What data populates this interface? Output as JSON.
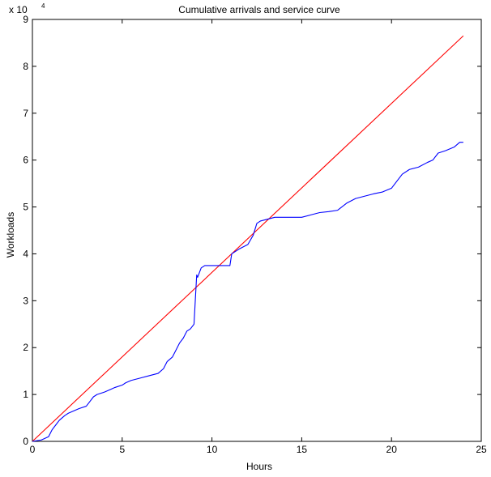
{
  "chart_data": {
    "type": "line",
    "title": "Cumulative arrivals and service curve",
    "xlabel": "Hours",
    "ylabel": "Workloads",
    "y_exponent_label": "x 10",
    "y_exponent_power": "4",
    "xlim": [
      0,
      25
    ],
    "ylim": [
      0,
      90000
    ],
    "x_ticks": [
      0,
      5,
      10,
      15,
      20,
      25
    ],
    "y_ticks": [
      0,
      10000,
      20000,
      30000,
      40000,
      50000,
      60000,
      70000,
      80000,
      90000
    ],
    "y_tick_labels": [
      "0",
      "1",
      "2",
      "3",
      "4",
      "5",
      "6",
      "7",
      "8",
      "9"
    ],
    "x_tick_labels": [
      "0",
      "5",
      "10",
      "15",
      "20",
      "25"
    ],
    "grid": false,
    "colors": {
      "service": "#ff0000",
      "arrivals": "#0000ff",
      "axes": "#000000"
    },
    "series": [
      {
        "color": "#ff0000",
        "x": [
          0,
          24
        ],
        "y": [
          0,
          86500
        ]
      },
      {
        "color": "#0000ff",
        "x": [
          0,
          0.5,
          0.9,
          1.1,
          1.3,
          1.5,
          1.8,
          2.0,
          2.3,
          2.6,
          3.0,
          3.2,
          3.4,
          3.6,
          4.0,
          4.3,
          4.6,
          5.0,
          5.2,
          5.5,
          6.0,
          6.5,
          7.0,
          7.3,
          7.5,
          7.8,
          8.0,
          8.2,
          8.4,
          8.6,
          8.8,
          9.0,
          9.15,
          9.2,
          9.4,
          9.6,
          9.8,
          10.0,
          10.5,
          11.0,
          11.1,
          11.5,
          12.0,
          12.3,
          12.5,
          12.7,
          13.0,
          13.5,
          14.0,
          14.5,
          15.0,
          15.5,
          16.0,
          16.5,
          17.0,
          17.5,
          18.0,
          18.5,
          19.0,
          19.5,
          20.0,
          20.3,
          20.6,
          21.0,
          21.5,
          22.0,
          22.3,
          22.6,
          23.0,
          23.5,
          23.8,
          24.0
        ],
        "y": [
          0,
          300,
          1000,
          2500,
          3500,
          4500,
          5500,
          6000,
          6500,
          7000,
          7500,
          8500,
          9500,
          10000,
          10500,
          11000,
          11500,
          12000,
          12500,
          13000,
          13500,
          14000,
          14500,
          15500,
          17000,
          18000,
          19500,
          21000,
          22000,
          23500,
          24000,
          25000,
          35500,
          35000,
          37000,
          37500,
          37500,
          37500,
          37500,
          37500,
          40000,
          41000,
          42000,
          44000,
          46500,
          47000,
          47300,
          47800,
          47800,
          47800,
          47800,
          48300,
          48800,
          49000,
          49300,
          50800,
          51800,
          52300,
          52800,
          53200,
          54000,
          55500,
          57000,
          58000,
          58500,
          59500,
          60000,
          61500,
          62000,
          62800,
          63800,
          63800
        ]
      }
    ]
  }
}
